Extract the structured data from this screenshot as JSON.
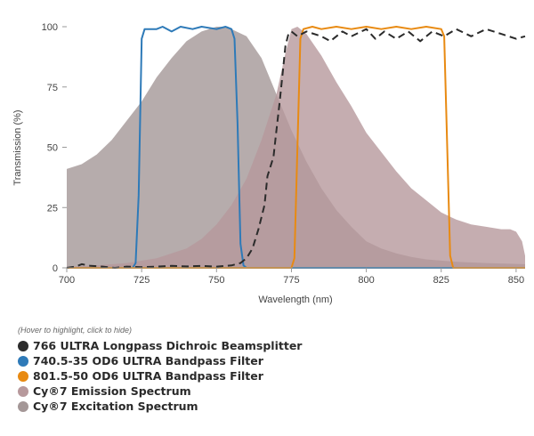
{
  "chart_data": {
    "type": "area",
    "xlabel": "Wavelength (nm)",
    "ylabel": "Transmission (%)",
    "xlim": [
      700,
      853
    ],
    "ylim": [
      0,
      100
    ],
    "x_ticks": [
      700,
      725,
      750,
      775,
      800,
      825,
      850
    ],
    "y_ticks": [
      0,
      25,
      50,
      75,
      100
    ],
    "grid": false,
    "legend_position": "bottom",
    "legend_hint": "(Hover to highlight, click to hide)",
    "series": [
      {
        "name": "Cy®7 Excitation Spectrum",
        "style": "area",
        "color": "#a49797",
        "points": [
          [
            700,
            41
          ],
          [
            705,
            43
          ],
          [
            710,
            47
          ],
          [
            715,
            53
          ],
          [
            720,
            61
          ],
          [
            725,
            69
          ],
          [
            730,
            79
          ],
          [
            735,
            87
          ],
          [
            740,
            94
          ],
          [
            745,
            98
          ],
          [
            750,
            100
          ],
          [
            752,
            100
          ],
          [
            755,
            99
          ],
          [
            760,
            96
          ],
          [
            765,
            87
          ],
          [
            770,
            72
          ],
          [
            775,
            57
          ],
          [
            780,
            44
          ],
          [
            785,
            33
          ],
          [
            790,
            24
          ],
          [
            795,
            17
          ],
          [
            800,
            11
          ],
          [
            805,
            8
          ],
          [
            810,
            6
          ],
          [
            815,
            4.5
          ],
          [
            820,
            3.5
          ],
          [
            825,
            3
          ],
          [
            830,
            2.5
          ],
          [
            840,
            2
          ],
          [
            853,
            1.5
          ]
        ]
      },
      {
        "name": "Cy®7 Emission Spectrum",
        "style": "area",
        "color": "#b7999c",
        "points": [
          [
            700,
            0.5
          ],
          [
            710,
            1
          ],
          [
            720,
            2
          ],
          [
            730,
            4
          ],
          [
            740,
            8
          ],
          [
            745,
            12
          ],
          [
            750,
            18
          ],
          [
            755,
            26
          ],
          [
            760,
            37
          ],
          [
            765,
            53
          ],
          [
            770,
            72
          ],
          [
            773,
            89
          ],
          [
            775,
            99
          ],
          [
            777,
            100
          ],
          [
            780,
            97
          ],
          [
            785,
            88
          ],
          [
            790,
            77
          ],
          [
            795,
            67
          ],
          [
            800,
            56
          ],
          [
            805,
            48
          ],
          [
            810,
            40
          ],
          [
            815,
            33
          ],
          [
            820,
            28
          ],
          [
            825,
            23
          ],
          [
            830,
            20
          ],
          [
            835,
            18
          ],
          [
            840,
            17
          ],
          [
            845,
            16
          ],
          [
            848,
            16
          ],
          [
            850,
            15
          ],
          [
            852,
            11
          ],
          [
            853,
            5
          ]
        ]
      },
      {
        "name": "740.5-35 OD6 ULTRA Bandpass Filter",
        "style": "line",
        "color": "#2e7ab8",
        "points": [
          [
            722,
            0
          ],
          [
            723,
            2
          ],
          [
            724,
            30
          ],
          [
            725,
            95
          ],
          [
            726,
            99
          ],
          [
            730,
            99
          ],
          [
            732,
            100
          ],
          [
            735,
            98
          ],
          [
            738,
            100
          ],
          [
            742,
            99
          ],
          [
            745,
            100
          ],
          [
            750,
            99
          ],
          [
            753,
            100
          ],
          [
            755,
            99
          ],
          [
            756,
            95
          ],
          [
            757,
            60
          ],
          [
            758,
            10
          ],
          [
            759,
            1
          ],
          [
            760,
            0
          ],
          [
            853,
            0
          ]
        ]
      },
      {
        "name": "801.5-50 OD6 ULTRA Bandpass Filter",
        "style": "line",
        "color": "#e88a12",
        "points": [
          [
            700,
            0
          ],
          [
            775,
            0
          ],
          [
            776,
            4
          ],
          [
            777,
            50
          ],
          [
            778,
            95
          ],
          [
            779,
            99
          ],
          [
            782,
            100
          ],
          [
            785,
            99
          ],
          [
            790,
            100
          ],
          [
            795,
            99
          ],
          [
            800,
            100
          ],
          [
            805,
            99
          ],
          [
            810,
            100
          ],
          [
            815,
            99
          ],
          [
            820,
            100
          ],
          [
            825,
            99
          ],
          [
            826,
            96
          ],
          [
            827,
            50
          ],
          [
            828,
            5
          ],
          [
            829,
            0
          ],
          [
            853,
            0
          ]
        ]
      },
      {
        "name": "766 ULTRA Longpass Dichroic Beamsplitter",
        "style": "dashed",
        "color": "#2b2b2b",
        "points": [
          [
            700,
            0
          ],
          [
            703,
            0.5
          ],
          [
            705,
            1.5
          ],
          [
            708,
            0.8
          ],
          [
            712,
            0.5
          ],
          [
            716,
            0
          ],
          [
            720,
            0.5
          ],
          [
            725,
            0.3
          ],
          [
            730,
            0.5
          ],
          [
            735,
            0.8
          ],
          [
            740,
            0.6
          ],
          [
            745,
            0.8
          ],
          [
            750,
            0.5
          ],
          [
            755,
            1
          ],
          [
            758,
            2
          ],
          [
            760,
            4
          ],
          [
            762,
            8
          ],
          [
            764,
            16
          ],
          [
            766,
            26
          ],
          [
            767,
            38
          ],
          [
            769,
            46
          ],
          [
            770,
            57
          ],
          [
            771,
            68
          ],
          [
            772,
            80
          ],
          [
            773,
            92
          ],
          [
            774,
            97
          ],
          [
            775,
            98
          ],
          [
            777,
            96
          ],
          [
            780,
            98
          ],
          [
            785,
            96
          ],
          [
            788,
            94
          ],
          [
            792,
            98
          ],
          [
            795,
            96
          ],
          [
            800,
            99
          ],
          [
            803,
            95
          ],
          [
            806,
            98
          ],
          [
            810,
            95
          ],
          [
            814,
            98
          ],
          [
            818,
            94
          ],
          [
            822,
            98
          ],
          [
            826,
            96
          ],
          [
            830,
            99
          ],
          [
            835,
            96
          ],
          [
            840,
            99
          ],
          [
            845,
            97
          ],
          [
            850,
            95
          ],
          [
            853,
            96
          ]
        ]
      }
    ]
  },
  "legend": {
    "hint": "(Hover to highlight, click to hide)",
    "items": [
      {
        "label": "766 ULTRA Longpass Dichroic Beamsplitter",
        "color": "#2b2b2b"
      },
      {
        "label": "740.5-35 OD6 ULTRA Bandpass Filter",
        "color": "#2e7ab8"
      },
      {
        "label": "801.5-50 OD6 ULTRA Bandpass Filter",
        "color": "#e88a12"
      },
      {
        "label": "Cy®7 Emission Spectrum",
        "color": "#b7999c"
      },
      {
        "label": "Cy®7 Excitation Spectrum",
        "color": "#a49797"
      }
    ]
  }
}
